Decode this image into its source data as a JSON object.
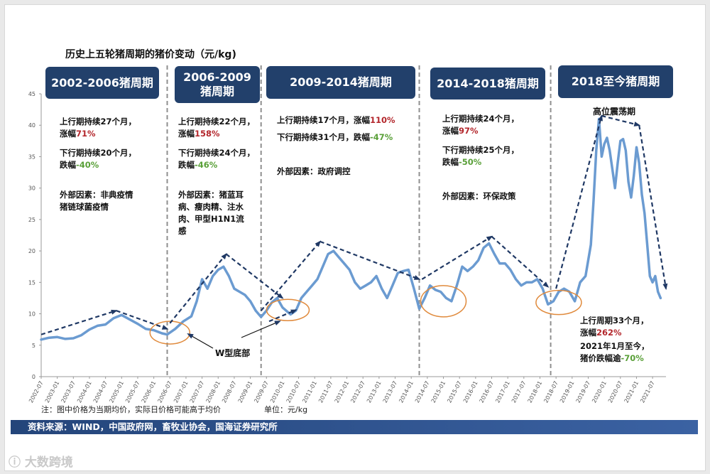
{
  "title": "历史上五轮猪周期的猪价变动（元/kg)",
  "cycles": [
    {
      "label": "2002-2006猪周期"
    },
    {
      "label": "2006-2009\n猪周期"
    },
    {
      "label": "2009-2014猪周期"
    },
    {
      "label": "2014-2018猪周期"
    },
    {
      "label": "2018至今猪周期"
    }
  ],
  "notes": {
    "c1": {
      "up_text": "上行期持续27个月，\n涨幅",
      "up_val": "71%",
      "down_text": "下行期持续20个月，\n跌幅",
      "down_val": "-40%",
      "factor": "外部因素：非典疫情\n猪链球菌疫情"
    },
    "c2": {
      "up_text": "上行期持续22个月，\n涨幅",
      "up_val": "158%",
      "down_text": "下行期持续24个月，\n跌幅",
      "down_val": "-46%",
      "factor": "外部因素：猪蓝耳\n病、瘦肉精、注水\n肉、甲型H1N1流\n感"
    },
    "c3": {
      "up_text": "上行期持续17个月，涨幅",
      "up_val": "110%",
      "down_text": "下行期持续31个月，跌幅",
      "down_val": "-47%",
      "factor": "外部因素：政府调控"
    },
    "c4": {
      "up_text": "上行期持续24个月，\n涨幅",
      "up_val": "97%",
      "down_text": "下行期持续25个月，\n跌幅",
      "down_val": "-50%",
      "factor": "外部因素：环保政策"
    },
    "c5": {
      "peak_label": "高位震荡期",
      "up_text": "上行周期33个月，\n涨幅",
      "up_val": "262%",
      "down_text": "2021年1月至今，\n猪价跌幅逾",
      "down_val": "-70%"
    }
  },
  "w_bottom_label": "W型底部",
  "footnote_left": "注：图中价格为当期均价，实际日价格可能高于均价",
  "footnote_right": "单位：元/kg",
  "source": "资料来源：WIND，中国政府网，畜牧业协会，国海证券研究所",
  "watermark": "大数跨境",
  "colors": {
    "line": "#6b9bd1",
    "arrow": "#1f3864",
    "ellipse": "#e08a3c",
    "box": "#22406b",
    "up": "#b3262b",
    "down": "#5aa039"
  },
  "chart_data": {
    "type": "line",
    "title": "历史上五轮猪周期的猪价变动（元/kg)",
    "ylabel": "元/kg",
    "ylim": [
      0,
      45
    ],
    "yticks": [
      0,
      5,
      10,
      15,
      20,
      25,
      30,
      35,
      40,
      45
    ],
    "xlim": [
      "2002-07",
      "2021-12"
    ],
    "xticks": [
      "2002-07",
      "2003-01",
      "2003-07",
      "2004-01",
      "2004-07",
      "2005-01",
      "2005-07",
      "2006-01",
      "2006-07",
      "2007-01",
      "2007-07",
      "2008-01",
      "2008-07",
      "2009-01",
      "2009-07",
      "2010-01",
      "2010-07",
      "2011-01",
      "2011-07",
      "2012-01",
      "2012-07",
      "2013-01",
      "2013-07",
      "2014-01",
      "2014-07",
      "2015-01",
      "2015-07",
      "2016-01",
      "2016-07",
      "2017-01",
      "2017-07",
      "2018-01",
      "2018-07",
      "2019-01",
      "2019-07",
      "2020-01",
      "2020-07",
      "2021-01",
      "2021-07"
    ],
    "cycle_boundaries": [
      "2006-06",
      "2009-05",
      "2014-04",
      "2018-05"
    ],
    "series": [
      {
        "values": [
          [
            "2002-07",
            5.9
          ],
          [
            "2002-10",
            6.2
          ],
          [
            "2003-01",
            6.3
          ],
          [
            "2003-04",
            6.0
          ],
          [
            "2003-07",
            6.1
          ],
          [
            "2003-10",
            6.6
          ],
          [
            "2004-01",
            7.5
          ],
          [
            "2004-04",
            8.1
          ],
          [
            "2004-07",
            8.3
          ],
          [
            "2004-10",
            9.3
          ],
          [
            "2005-01",
            9.8
          ],
          [
            "2005-04",
            9.1
          ],
          [
            "2005-07",
            8.4
          ],
          [
            "2005-10",
            7.6
          ],
          [
            "2006-01",
            7.4
          ],
          [
            "2006-04",
            6.9
          ],
          [
            "2006-06",
            6.7
          ],
          [
            "2006-09",
            7.6
          ],
          [
            "2006-12",
            8.8
          ],
          [
            "2007-03",
            9.6
          ],
          [
            "2007-05",
            12.0
          ],
          [
            "2007-07",
            15.5
          ],
          [
            "2007-09",
            14.0
          ],
          [
            "2007-11",
            16.0
          ],
          [
            "2008-01",
            17.0
          ],
          [
            "2008-03",
            17.5
          ],
          [
            "2008-05",
            16.0
          ],
          [
            "2008-07",
            14.0
          ],
          [
            "2008-09",
            13.5
          ],
          [
            "2008-11",
            13.0
          ],
          [
            "2009-01",
            12.0
          ],
          [
            "2009-03",
            10.5
          ],
          [
            "2009-05",
            9.5
          ],
          [
            "2009-07",
            10.5
          ],
          [
            "2009-09",
            11.8
          ],
          [
            "2009-11",
            12.5
          ],
          [
            "2010-01",
            11.0
          ],
          [
            "2010-04",
            9.9
          ],
          [
            "2010-06",
            10.5
          ],
          [
            "2010-08",
            12.5
          ],
          [
            "2010-10",
            13.5
          ],
          [
            "2010-12",
            14.5
          ],
          [
            "2011-02",
            15.5
          ],
          [
            "2011-04",
            17.5
          ],
          [
            "2011-06",
            19.5
          ],
          [
            "2011-08",
            20.0
          ],
          [
            "2011-10",
            19.0
          ],
          [
            "2011-12",
            18.0
          ],
          [
            "2012-02",
            17.0
          ],
          [
            "2012-04",
            15.0
          ],
          [
            "2012-06",
            14.0
          ],
          [
            "2012-08",
            14.5
          ],
          [
            "2012-10",
            15.0
          ],
          [
            "2012-12",
            16.0
          ],
          [
            "2013-02",
            14.0
          ],
          [
            "2013-04",
            12.5
          ],
          [
            "2013-06",
            14.5
          ],
          [
            "2013-08",
            16.5
          ],
          [
            "2013-10",
            16.8
          ],
          [
            "2013-12",
            17.0
          ],
          [
            "2014-02",
            14.0
          ],
          [
            "2014-04",
            10.8
          ],
          [
            "2014-06",
            12.5
          ],
          [
            "2014-08",
            14.5
          ],
          [
            "2014-10",
            13.8
          ],
          [
            "2014-12",
            13.5
          ],
          [
            "2015-02",
            12.5
          ],
          [
            "2015-04",
            12.0
          ],
          [
            "2015-06",
            14.5
          ],
          [
            "2015-08",
            17.5
          ],
          [
            "2015-10",
            16.8
          ],
          [
            "2015-12",
            17.5
          ],
          [
            "2016-02",
            18.5
          ],
          [
            "2016-04",
            20.5
          ],
          [
            "2016-06",
            21.2
          ],
          [
            "2016-08",
            19.5
          ],
          [
            "2016-10",
            18.0
          ],
          [
            "2016-12",
            18.0
          ],
          [
            "2017-02",
            17.0
          ],
          [
            "2017-04",
            15.5
          ],
          [
            "2017-06",
            14.5
          ],
          [
            "2017-08",
            15.0
          ],
          [
            "2017-10",
            15.0
          ],
          [
            "2017-12",
            15.5
          ],
          [
            "2018-02",
            14.0
          ],
          [
            "2018-04",
            11.5
          ],
          [
            "2018-06",
            12.0
          ],
          [
            "2018-08",
            13.5
          ],
          [
            "2018-10",
            14.0
          ],
          [
            "2018-12",
            13.5
          ],
          [
            "2019-02",
            12.0
          ],
          [
            "2019-04",
            15.0
          ],
          [
            "2019-06",
            16.0
          ],
          [
            "2019-08",
            21.0
          ],
          [
            "2019-09",
            28.0
          ],
          [
            "2019-10",
            36.0
          ],
          [
            "2019-11",
            41.0
          ],
          [
            "2019-12",
            35.0
          ],
          [
            "2020-01",
            37.0
          ],
          [
            "2020-02",
            38.0
          ],
          [
            "2020-03",
            36.0
          ],
          [
            "2020-04",
            33.0
          ],
          [
            "2020-05",
            30.0
          ],
          [
            "2020-06",
            34.0
          ],
          [
            "2020-07",
            37.5
          ],
          [
            "2020-08",
            37.8
          ],
          [
            "2020-09",
            36.0
          ],
          [
            "2020-10",
            31.0
          ],
          [
            "2020-11",
            28.5
          ],
          [
            "2020-12",
            32.0
          ],
          [
            "2021-01",
            36.5
          ],
          [
            "2021-02",
            34.0
          ],
          [
            "2021-03",
            29.0
          ],
          [
            "2021-04",
            26.0
          ],
          [
            "2021-05",
            21.0
          ],
          [
            "2021-06",
            16.0
          ],
          [
            "2021-07",
            15.0
          ],
          [
            "2021-08",
            16.0
          ],
          [
            "2021-09",
            13.5
          ],
          [
            "2021-10",
            12.5
          ]
        ]
      }
    ]
  }
}
